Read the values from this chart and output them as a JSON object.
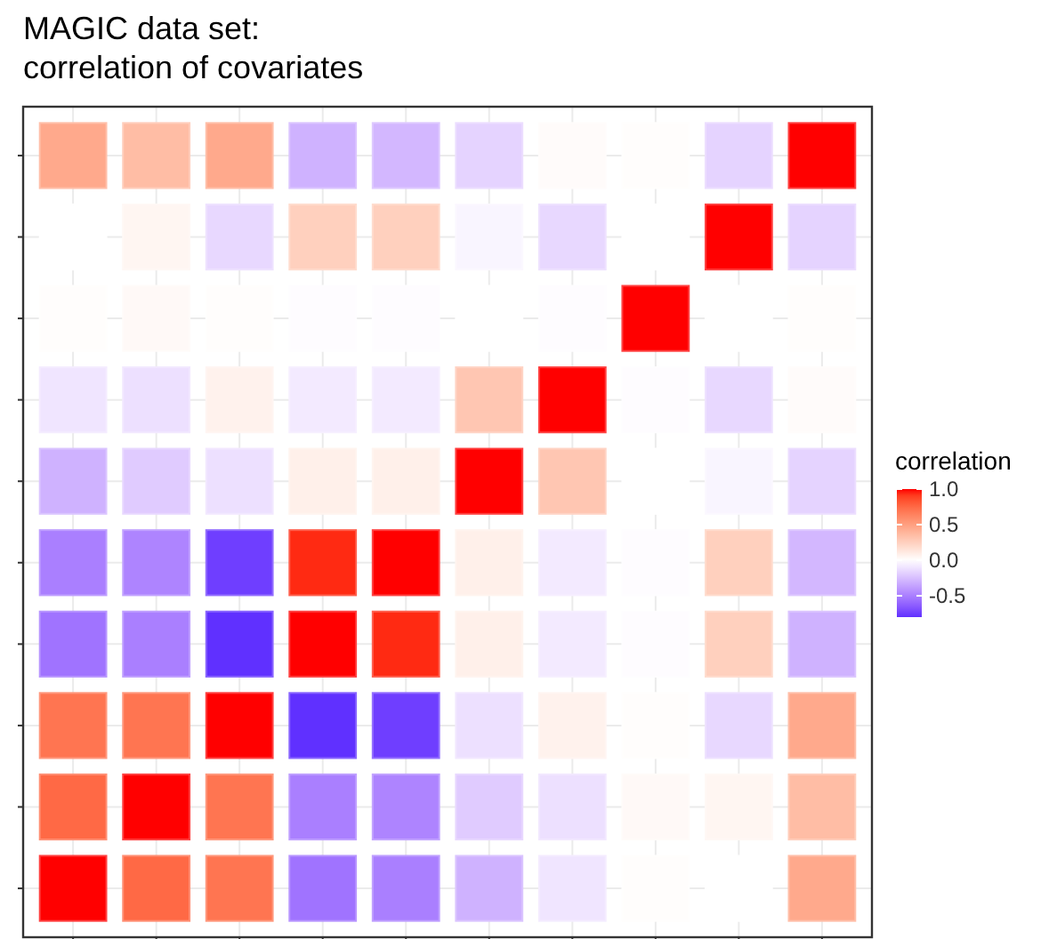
{
  "chart_data": {
    "type": "heatmap",
    "title": "MAGIC data set:\ncorrelation of covariates",
    "clabel": "correlation",
    "categories": [
      null,
      null,
      null,
      null,
      null,
      null,
      null,
      null,
      null,
      null
    ],
    "y_categories": [
      null,
      null,
      null,
      null,
      null,
      null,
      null,
      null,
      null,
      null
    ],
    "cells": [
      [
        0.45,
        0.35,
        0.45,
        -0.3,
        -0.28,
        -0.17,
        0.02,
        0.01,
        -0.17,
        1
      ],
      [
        0.0,
        0.05,
        -0.15,
        0.25,
        0.25,
        -0.04,
        -0.15,
        0.0,
        1,
        -0.17
      ],
      [
        0.01,
        0.03,
        0.01,
        -0.01,
        -0.01,
        0.0,
        -0.01,
        1,
        0.0,
        0.01
      ],
      [
        -0.1,
        -0.12,
        0.07,
        -0.08,
        -0.08,
        0.3,
        1,
        -0.01,
        -0.15,
        0.02
      ],
      [
        -0.3,
        -0.2,
        -0.12,
        0.08,
        0.08,
        1,
        0.3,
        0.0,
        -0.04,
        -0.17
      ],
      [
        -0.5,
        -0.48,
        -0.75,
        0.95,
        1,
        0.08,
        -0.08,
        -0.01,
        0.25,
        -0.28
      ],
      [
        -0.55,
        -0.5,
        -0.8,
        1,
        0.95,
        0.08,
        -0.08,
        -0.01,
        0.25,
        -0.3
      ],
      [
        0.7,
        0.7,
        1,
        -0.8,
        -0.75,
        -0.12,
        0.07,
        0.01,
        -0.15,
        0.45
      ],
      [
        0.75,
        1,
        0.7,
        -0.5,
        -0.48,
        -0.2,
        -0.12,
        0.03,
        0.05,
        0.35
      ],
      [
        1,
        0.75,
        0.7,
        -0.55,
        -0.5,
        -0.3,
        -0.1,
        0.01,
        0.0,
        0.45
      ]
    ],
    "colors": [
      "#6030ff",
      "#ffffff",
      "#ff0000"
    ],
    "clim": [
      -0.8,
      1
    ],
    "cticks": [
      {
        "value": 1,
        "label": "1.0"
      },
      0.5,
      {
        "value": 0,
        "label": "0.0"
      },
      -0.5
    ],
    "grid": true
  }
}
